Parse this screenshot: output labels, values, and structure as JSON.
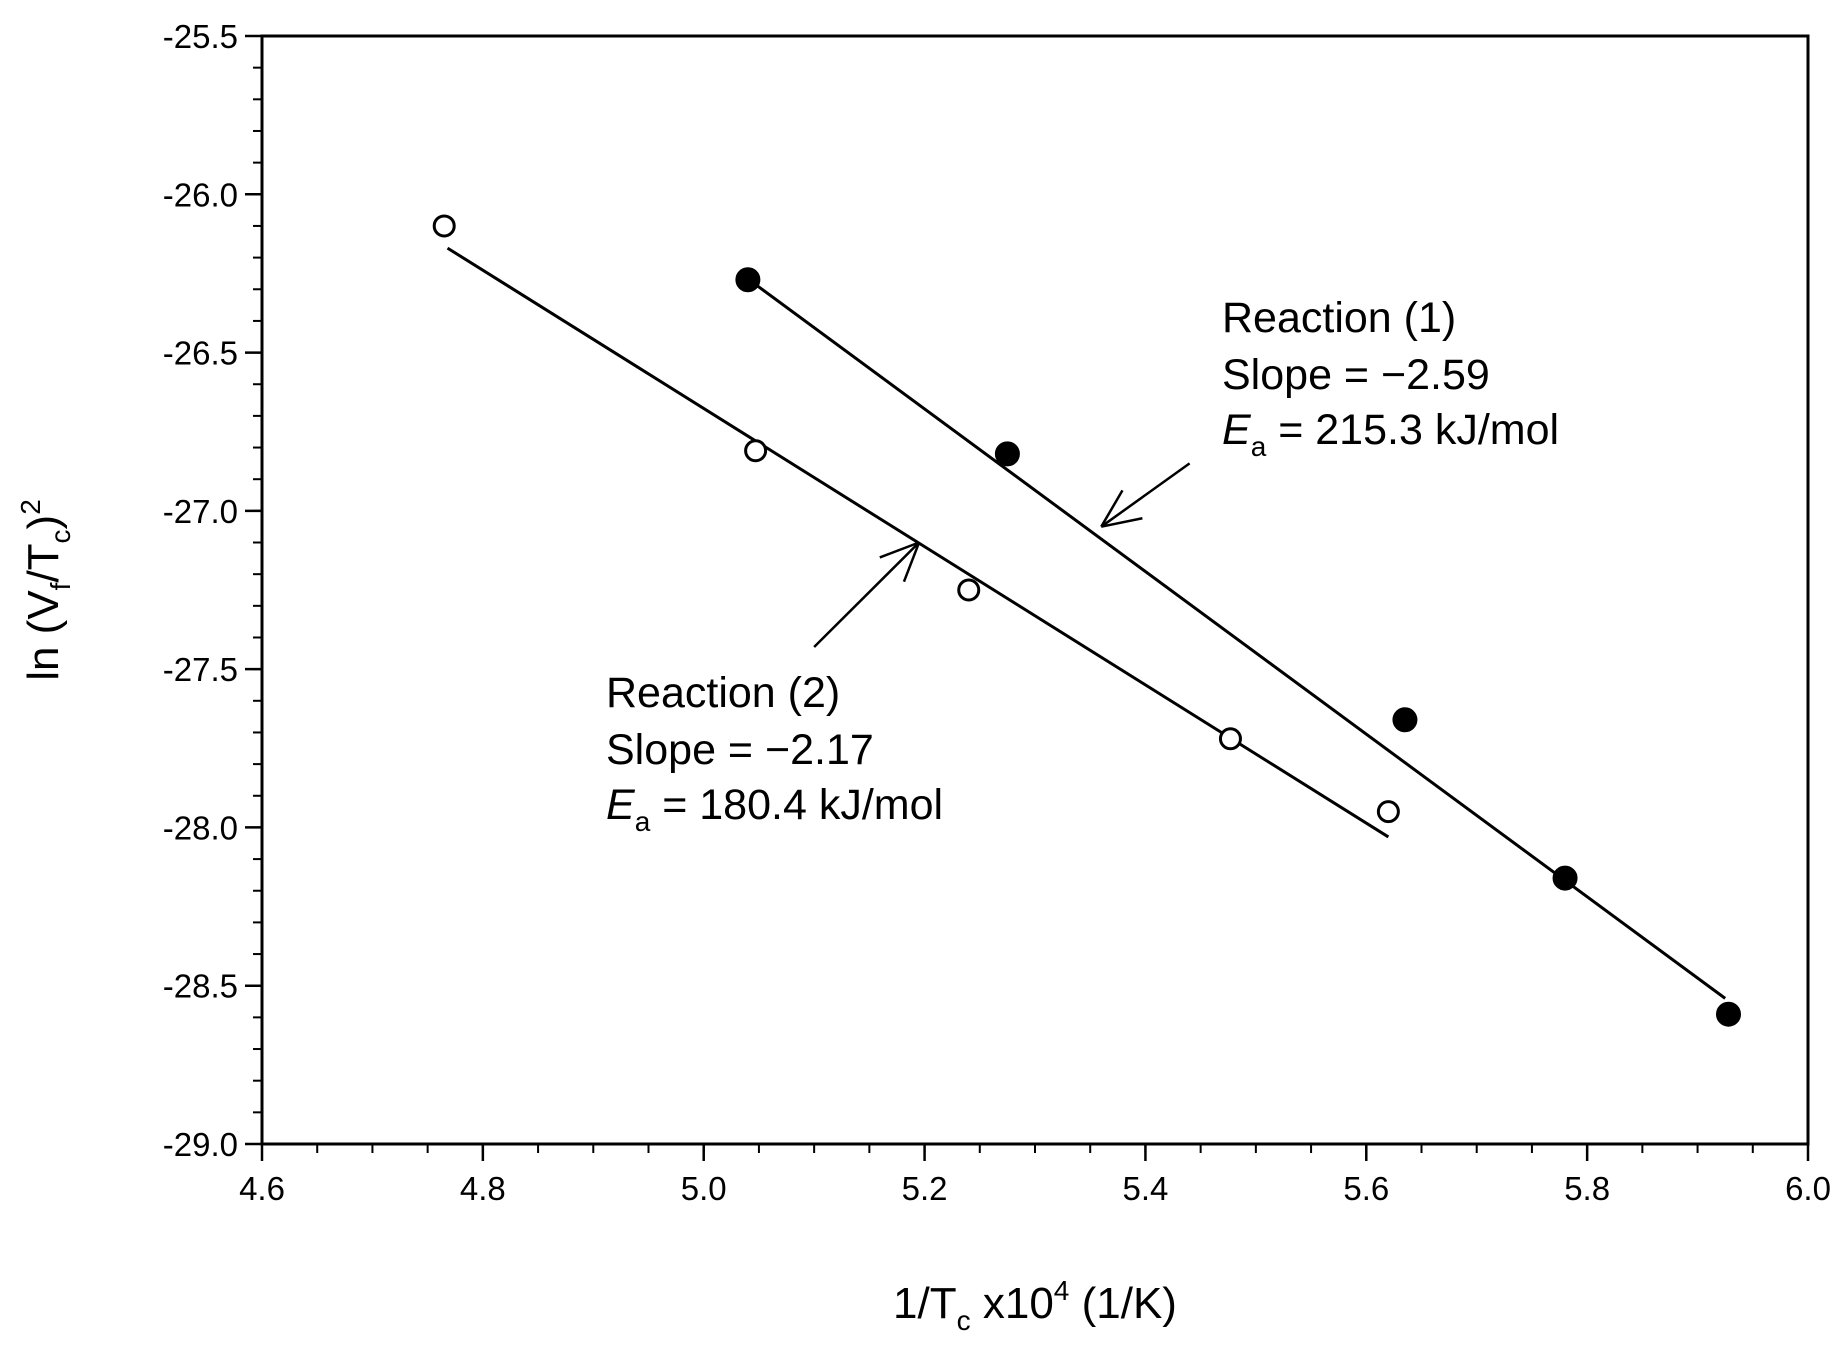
{
  "chart_data": {
    "type": "scatter",
    "title": "",
    "xlabel": {
      "main": "1/T",
      "sub": "c",
      "mid": " x10",
      "sup": "4",
      "tail": " (1/K)"
    },
    "ylabel": {
      "p1": "ln (V",
      "sub1": "f",
      "p2": "/T",
      "sub2": "c",
      "p3": ")",
      "sup": "2"
    },
    "xlim": [
      4.6,
      6.0
    ],
    "ylim": [
      -29.0,
      -25.5
    ],
    "x_major": [
      4.6,
      4.8,
      5.0,
      5.2,
      5.4,
      5.6,
      5.8,
      6.0
    ],
    "y_major": [
      -29.0,
      -28.5,
      -28.0,
      -27.5,
      -27.0,
      -26.5,
      -26.0,
      -25.5
    ],
    "x_tick_labels": [
      "4.6",
      "4.8",
      "5.0",
      "5.2",
      "5.4",
      "5.6",
      "5.8",
      "6.0"
    ],
    "y_tick_labels": [
      "-29.0",
      "-28.5",
      "-28.0",
      "-27.5",
      "-27.0",
      "-26.5",
      "-26.0",
      "-25.5"
    ],
    "x_minor_step": 0.05,
    "y_minor_step": 0.1,
    "grid": false,
    "series": [
      {
        "name": "Reaction (1)",
        "marker": "filled-circle",
        "x": [
          5.04,
          5.275,
          5.635,
          5.78,
          5.928
        ],
        "y": [
          -26.27,
          -26.82,
          -27.66,
          -28.16,
          -28.59
        ],
        "fit": {
          "x": [
            5.045,
            5.925
          ],
          "y": [
            -26.28,
            -28.54
          ]
        }
      },
      {
        "name": "Reaction (2)",
        "marker": "open-circle",
        "x": [
          4.765,
          5.047,
          5.24,
          5.477,
          5.62
        ],
        "y": [
          -26.1,
          -26.81,
          -27.25,
          -27.72,
          -27.95
        ],
        "fit": {
          "x": [
            4.768,
            5.62
          ],
          "y": [
            -26.17,
            -28.03
          ]
        }
      }
    ],
    "annotations": [
      {
        "name": "reaction-1",
        "line1": "Reaction (1)",
        "line2": "Slope = −2.59",
        "ea_symbol": "E",
        "ea_sub": "a",
        "ea_value": " = 215.3 kJ/mol",
        "arrow_from": [
          5.44,
          -26.85
        ],
        "arrow_to": [
          5.36,
          -27.05
        ]
      },
      {
        "name": "reaction-2",
        "line1": "Reaction (2)",
        "line2": "Slope = −2.17",
        "ea_symbol": "E",
        "ea_sub": "a",
        "ea_value": " = 180.4 kJ/mol",
        "arrow_from": [
          5.1,
          -27.43
        ],
        "arrow_to": [
          5.195,
          -27.1
        ]
      }
    ]
  }
}
